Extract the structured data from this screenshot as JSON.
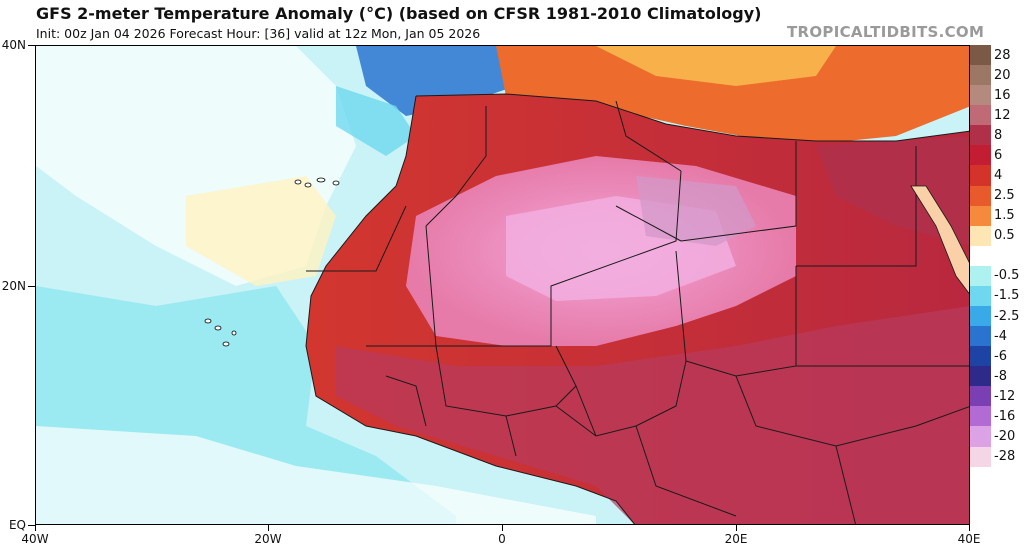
{
  "header": {
    "title": "GFS 2-meter Temperature Anomaly (°C) (based on CFSR 1981-2010 Climatology)",
    "subtitle": "Init: 00z Jan 04 2026   Forecast Hour: [36]   valid at 12z Mon, Jan 05 2026",
    "brand": "TROPICALTIDBITS.COM"
  },
  "axes": {
    "lat_labels": [
      "40N",
      "20N",
      "EQ"
    ],
    "lon_labels": [
      "40W",
      "20W",
      "0",
      "20E",
      "40E"
    ]
  },
  "legend": {
    "items": [
      {
        "label": "28",
        "color": "#7a5a47"
      },
      {
        "label": "20",
        "color": "#9c7766"
      },
      {
        "label": "16",
        "color": "#b48a7e"
      },
      {
        "label": "12",
        "color": "#c06a75"
      },
      {
        "label": "8",
        "color": "#b0304a"
      },
      {
        "label": "6",
        "color": "#c21d33"
      },
      {
        "label": "4",
        "color": "#d33328"
      },
      {
        "label": "2.5",
        "color": "#e85a2c"
      },
      {
        "label": "1.5",
        "color": "#f58a3c"
      },
      {
        "label": "0.5",
        "color": "#fde6b4"
      },
      {
        "label": "",
        "color": "#ffffff"
      },
      {
        "label": "-0.5",
        "color": "#aef1f1"
      },
      {
        "label": "-1.5",
        "color": "#6fd8f0"
      },
      {
        "label": "-2.5",
        "color": "#3aa9e8"
      },
      {
        "label": "-4",
        "color": "#2a74d0"
      },
      {
        "label": "-6",
        "color": "#1d43a4"
      },
      {
        "label": "-8",
        "color": "#2e2a8a"
      },
      {
        "label": "-12",
        "color": "#7b3fb4"
      },
      {
        "label": "-16",
        "color": "#b26ad4"
      },
      {
        "label": "-20",
        "color": "#dca2e6"
      },
      {
        "label": "-28",
        "color": "#f5d6e6"
      }
    ]
  },
  "map_colors": {
    "ocean_base": "#c9f3f6",
    "ocean_light": "#ffffff",
    "ocean_cyan": "#74e2ec",
    "ocean_yellow": "#fff3c0",
    "cold_blue": "#2a74d0",
    "land_red": "#c93a3a",
    "land_orange": "#ec6b2d",
    "land_dark": "#a22440",
    "land_pink": "#e8719e",
    "land_lightpink": "#f09ad2",
    "border": "#1a1a1a"
  }
}
